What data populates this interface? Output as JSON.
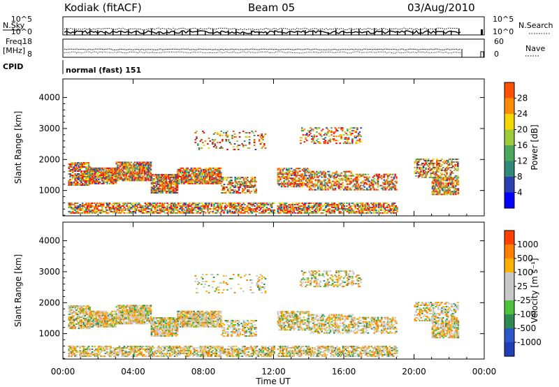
{
  "header": {
    "site": "Kodiak (fitACF)",
    "beam": "Beam 05",
    "date": "03/Aug/2010"
  },
  "top_panels": {
    "left_top": "N.Sky",
    "left_top_ticks": [
      "10^5",
      "10^0"
    ],
    "right_top_ticks": [
      "10^5",
      "10^0"
    ],
    "right_top_label": "N.Search",
    "freq_label": "Freq.",
    "freq_unit": "[MHz]",
    "freq_ticks": [
      "18",
      "8"
    ],
    "nave_ticks": [
      "60",
      "0"
    ],
    "nave_label": "Nave",
    "cpid_label": "CPID",
    "cpid_value": "normal (fast) 151"
  },
  "colors": {
    "power": [
      "#0000ff",
      "#2a3fb0",
      "#2f8a7a",
      "#4ca85a",
      "#9ccc3a",
      "#f4d600",
      "#ff8c00",
      "#ff5000",
      "#ff0000"
    ],
    "velocity": [
      "#1f3fb8",
      "#2d58c8",
      "#2f8a52",
      "#4cc23a",
      "#c8c8c8",
      "#c8c8c8",
      "#ffb000",
      "#ff8000",
      "#ff4000",
      "#ff0000"
    ]
  },
  "chart_data": [
    {
      "type": "heatmap",
      "name": "power",
      "ylabel": "Slant Range [km]",
      "ylim": [
        180,
        4600
      ],
      "yticks": [
        "4000",
        "3000",
        "2000",
        "1000"
      ],
      "xlim_hours": [
        0,
        24
      ],
      "colorbar_label": "Power [dB]",
      "colorbar_ticks": [
        "28",
        "24",
        "20",
        "16",
        "12",
        "8",
        "4"
      ]
    },
    {
      "type": "heatmap",
      "name": "velocity",
      "ylabel": "Slant Range [km]",
      "ylim": [
        180,
        4600
      ],
      "yticks": [
        "4000",
        "3000",
        "2000",
        "1000"
      ],
      "xlim_hours": [
        0,
        24
      ],
      "xticks": [
        "00:00",
        "04:00",
        "08:00",
        "12:00",
        "16:00",
        "20:00",
        "00:00"
      ],
      "xlabel": "Time UT",
      "colorbar_label": "Velocity [m s⁻¹]",
      "colorbar_ticks": [
        "1000",
        "500",
        "100",
        "25",
        "-25",
        "-100",
        "-500",
        "-1000"
      ]
    }
  ]
}
